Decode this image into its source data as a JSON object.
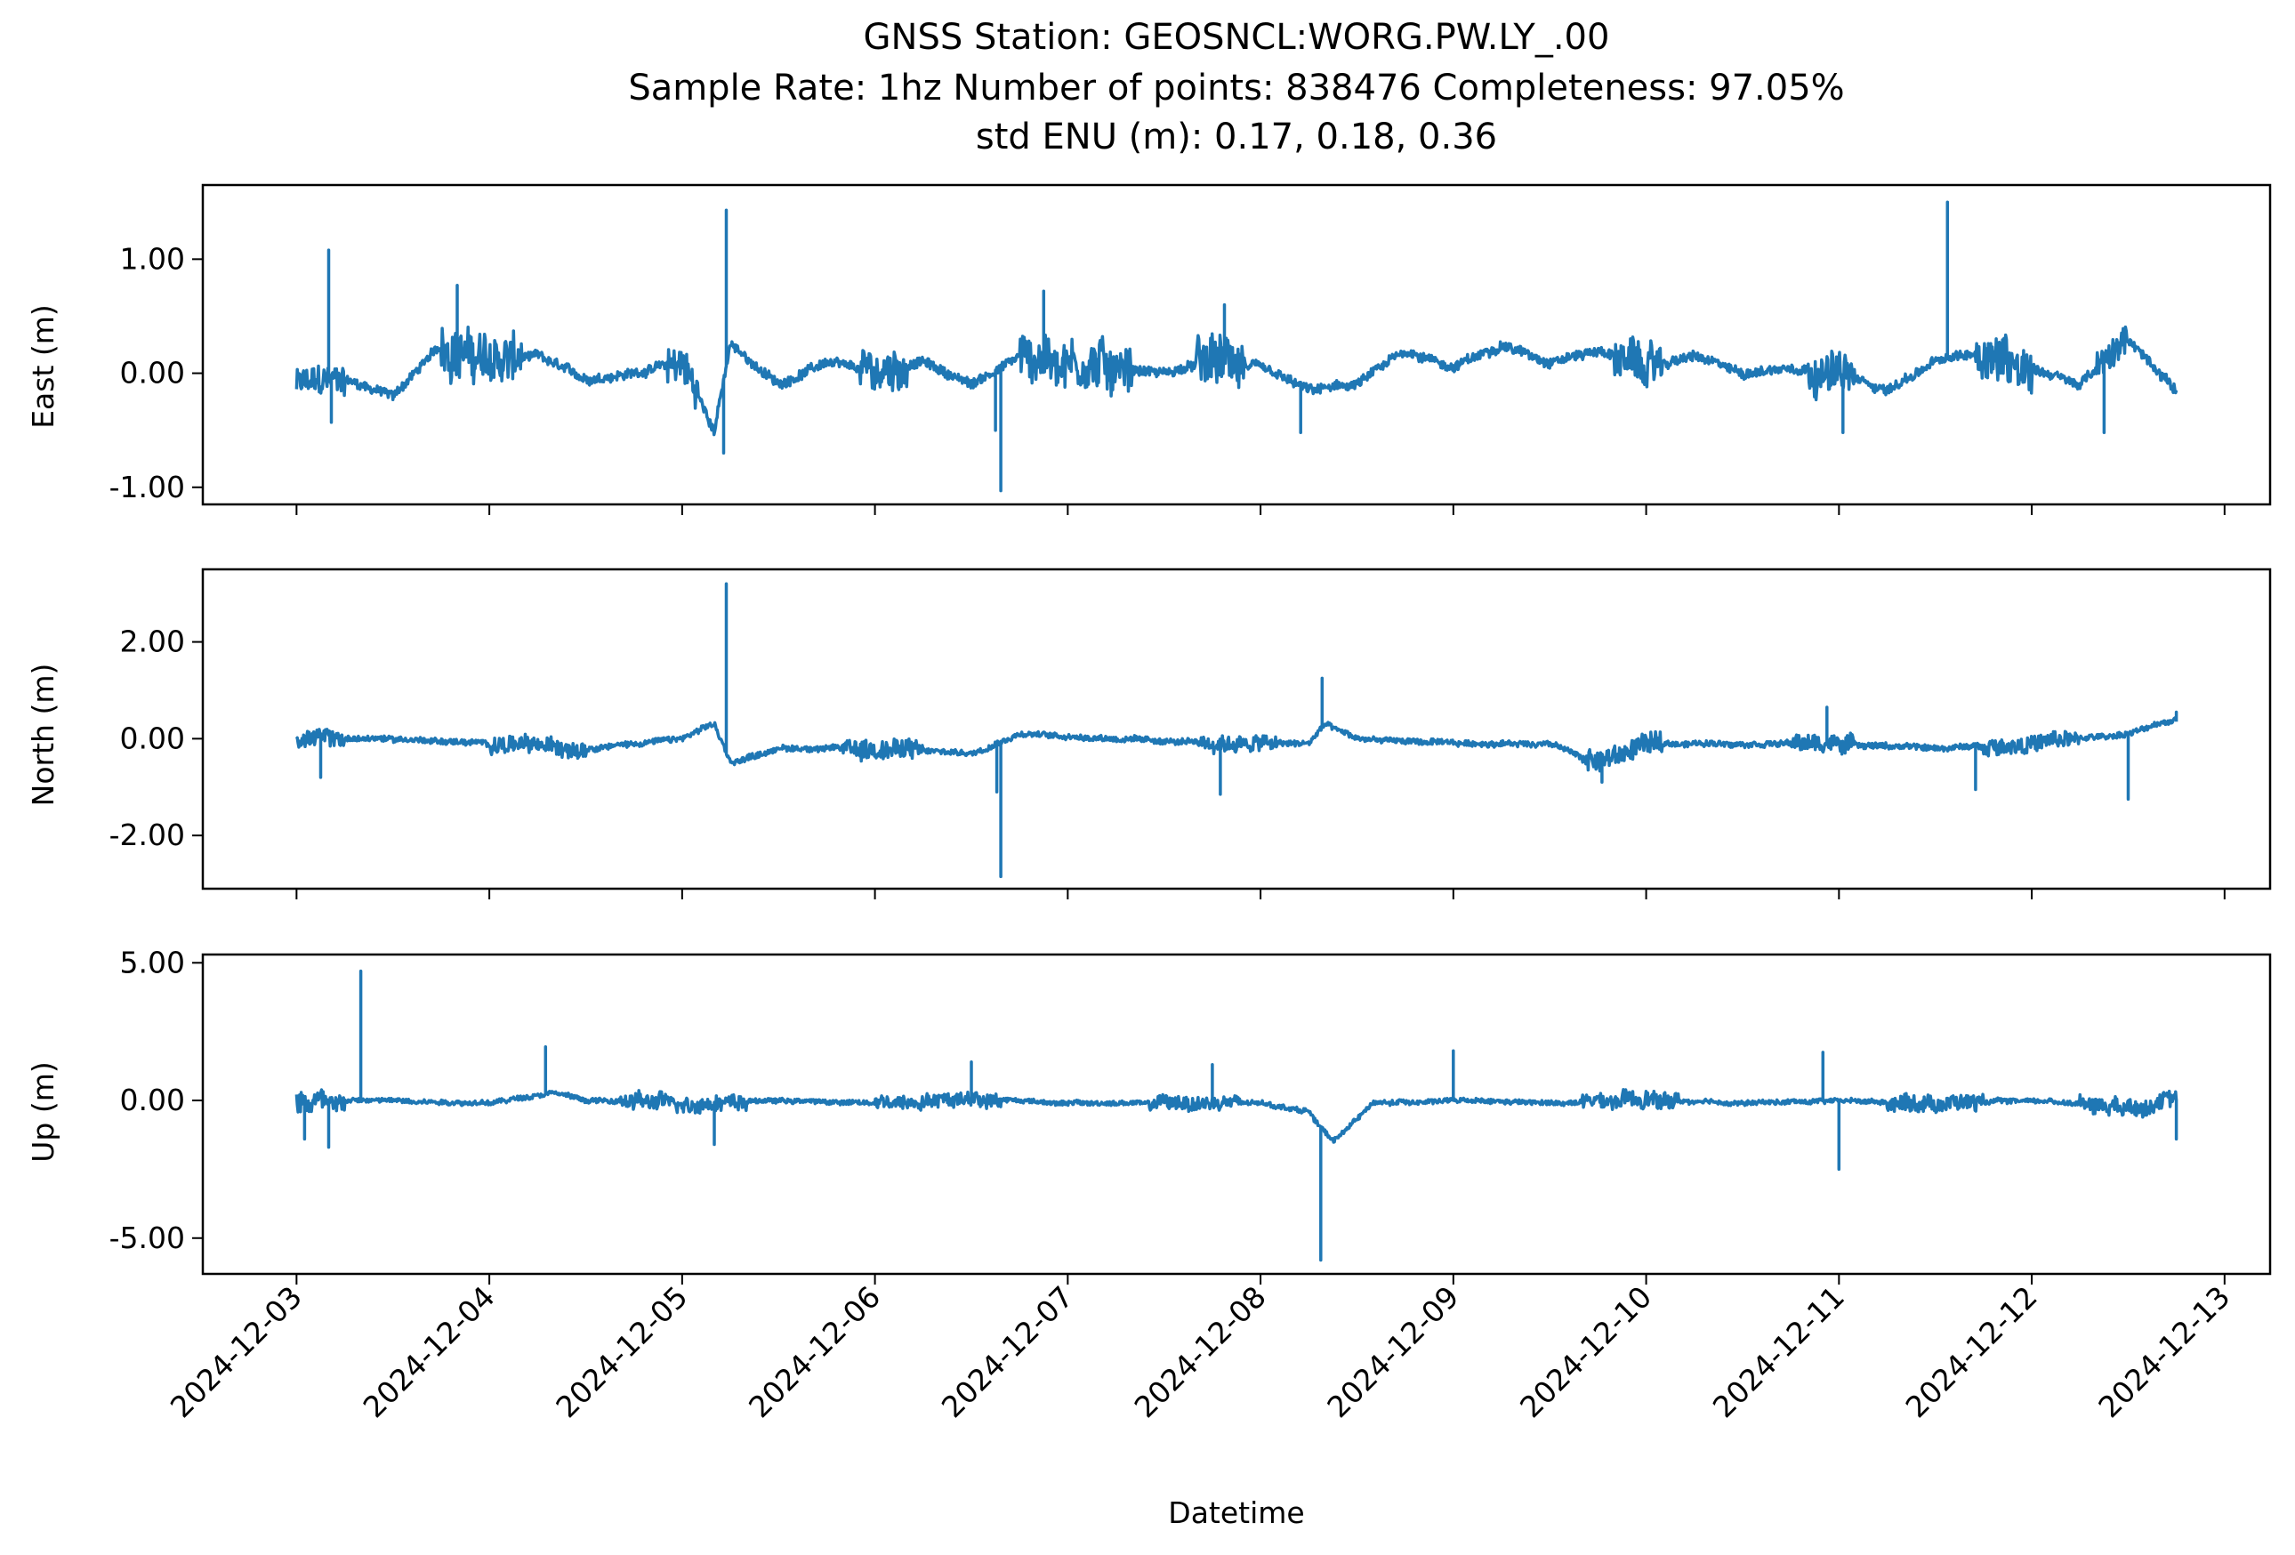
{
  "figure": {
    "title_lines": [
      "GNSS Station: GEOSNCL:WORG.PW.LY_.00",
      "Sample Rate: 1hz   Number of points: 838476    Completeness:  97.05%",
      "std ENU (m):  0.17, 0.18, 0.36"
    ],
    "xlabel": "Datetime",
    "line_color": "#1f77b4"
  },
  "chart_data": [
    {
      "type": "line",
      "ylabel": "East (m)",
      "ylim": [
        -1.15,
        1.65
      ],
      "yticks": [
        -1.0,
        0.0,
        1.0
      ],
      "ytick_labels": [
        "-1.00",
        "0.00",
        "1.00"
      ],
      "xlim": [
        "2024-12-02T12:20",
        "2024-12-13T05:40"
      ],
      "x_start": "2024-12-03T00:00",
      "x_end": "2024-12-12T18:00",
      "series": [
        {
          "profile": [
            [
              "2024-12-03T00:00",
              -0.1
            ],
            [
              "2024-12-03T06:00",
              -0.05
            ],
            [
              "2024-12-03T12:00",
              -0.2
            ],
            [
              "2024-12-03T18:00",
              0.25
            ],
            [
              "2024-12-04T00:00",
              0.1
            ],
            [
              "2024-12-04T06:00",
              0.15
            ],
            [
              "2024-12-04T12:00",
              -0.05
            ],
            [
              "2024-12-04T18:00",
              0.0
            ],
            [
              "2024-12-05T00:00",
              0.1
            ],
            [
              "2024-12-05T04:00",
              -0.5
            ],
            [
              "2024-12-05T06:00",
              0.25
            ],
            [
              "2024-12-05T12:00",
              -0.1
            ],
            [
              "2024-12-05T18:00",
              0.1
            ],
            [
              "2024-12-06T00:00",
              0.0
            ],
            [
              "2024-12-06T06:00",
              0.1
            ],
            [
              "2024-12-06T12:00",
              -0.1
            ],
            [
              "2024-12-06T18:00",
              0.15
            ],
            [
              "2024-12-07T00:00",
              0.1
            ],
            [
              "2024-12-07T06:00",
              0.05
            ],
            [
              "2024-12-07T12:00",
              0.0
            ],
            [
              "2024-12-07T18:00",
              0.1
            ],
            [
              "2024-12-08T00:00",
              0.05
            ],
            [
              "2024-12-08T06:00",
              -0.15
            ],
            [
              "2024-12-08T12:00",
              -0.1
            ],
            [
              "2024-12-08T18:00",
              0.2
            ],
            [
              "2024-12-09T00:00",
              0.05
            ],
            [
              "2024-12-09T06:00",
              0.25
            ],
            [
              "2024-12-09T12:00",
              0.1
            ],
            [
              "2024-12-09T18:00",
              0.2
            ],
            [
              "2024-12-10T00:00",
              0.05
            ],
            [
              "2024-12-10T06:00",
              0.15
            ],
            [
              "2024-12-10T12:00",
              0.0
            ],
            [
              "2024-12-10T18:00",
              0.05
            ],
            [
              "2024-12-11T00:00",
              0.0
            ],
            [
              "2024-12-11T06:00",
              -0.15
            ],
            [
              "2024-12-11T12:00",
              0.1
            ],
            [
              "2024-12-11T18:00",
              0.2
            ],
            [
              "2024-12-12T00:00",
              0.05
            ],
            [
              "2024-12-12T06:00",
              -0.1
            ],
            [
              "2024-12-12T12:00",
              0.3
            ],
            [
              "2024-12-12T18:00",
              -0.15
            ]
          ],
          "spikes": [
            [
              "2024-12-03T04:00",
              1.08
            ],
            [
              "2024-12-03T04:20",
              -0.43
            ],
            [
              "2024-12-03T20:00",
              0.77
            ],
            [
              "2024-12-05T05:30",
              1.43
            ],
            [
              "2024-12-05T05:10",
              -0.7
            ],
            [
              "2024-12-06T15:00",
              -0.5
            ],
            [
              "2024-12-06T15:40",
              -1.03
            ],
            [
              "2024-12-06T21:00",
              0.72
            ],
            [
              "2024-12-07T19:30",
              0.6
            ],
            [
              "2024-12-08T05:00",
              -0.52
            ],
            [
              "2024-12-11T13:30",
              1.5
            ],
            [
              "2024-12-11T00:30",
              -0.52
            ],
            [
              "2024-12-12T09:00",
              -0.52
            ]
          ],
          "noise_bands": [
            [
              "2024-12-03T00:00",
              "2024-12-03T06:00",
              0.15
            ],
            [
              "2024-12-03T18:00",
              "2024-12-04T04:00",
              0.25
            ],
            [
              "2024-12-04T22:00",
              "2024-12-05T02:00",
              0.2
            ],
            [
              "2024-12-05T22:00",
              "2024-12-06T04:00",
              0.2
            ],
            [
              "2024-12-06T18:00",
              "2024-12-07T08:00",
              0.25
            ],
            [
              "2024-12-07T16:00",
              "2024-12-07T22:00",
              0.25
            ],
            [
              "2024-12-09T20:00",
              "2024-12-10T02:00",
              0.2
            ],
            [
              "2024-12-10T20:00",
              "2024-12-11T02:00",
              0.2
            ],
            [
              "2024-12-11T17:00",
              "2024-12-12T00:00",
              0.25
            ],
            [
              "2024-12-12T08:00",
              "2024-12-12T12:00",
              0.15
            ]
          ],
          "base_noise": 0.05
        }
      ]
    },
    {
      "type": "line",
      "ylabel": "North (m)",
      "ylim": [
        -3.1,
        3.5
      ],
      "yticks": [
        -2.0,
        0.0,
        2.0
      ],
      "ytick_labels": [
        "-2.00",
        "0.00",
        "2.00"
      ],
      "xlim": [
        "2024-12-02T12:20",
        "2024-12-13T05:40"
      ],
      "x_start": "2024-12-03T00:00",
      "x_end": "2024-12-12T18:00",
      "series": [
        {
          "profile": [
            [
              "2024-12-03T00:00",
              0.0
            ],
            [
              "2024-12-03T12:00",
              0.0
            ],
            [
              "2024-12-04T00:00",
              -0.1
            ],
            [
              "2024-12-04T12:00",
              -0.2
            ],
            [
              "2024-12-05T00:00",
              0.0
            ],
            [
              "2024-12-05T04:00",
              0.3
            ],
            [
              "2024-12-05T06:00",
              -0.5
            ],
            [
              "2024-12-05T12:00",
              -0.2
            ],
            [
              "2024-12-06T00:00",
              -0.2
            ],
            [
              "2024-12-06T12:00",
              -0.3
            ],
            [
              "2024-12-06T18:00",
              0.1
            ],
            [
              "2024-12-07T06:00",
              0.0
            ],
            [
              "2024-12-07T18:00",
              -0.1
            ],
            [
              "2024-12-08T06:00",
              -0.1
            ],
            [
              "2024-12-08T08:00",
              0.3
            ],
            [
              "2024-12-08T12:00",
              0.0
            ],
            [
              "2024-12-09T00:00",
              -0.1
            ],
            [
              "2024-12-09T12:00",
              -0.1
            ],
            [
              "2024-12-09T18:00",
              -0.5
            ],
            [
              "2024-12-10T00:00",
              -0.1
            ],
            [
              "2024-12-10T12:00",
              -0.1
            ],
            [
              "2024-12-11T00:00",
              -0.1
            ],
            [
              "2024-12-11T12:00",
              -0.2
            ],
            [
              "2024-12-12T00:00",
              -0.1
            ],
            [
              "2024-12-12T12:00",
              0.1
            ],
            [
              "2024-12-12T18:00",
              0.4
            ]
          ],
          "spikes": [
            [
              "2024-12-05T05:30",
              3.2
            ],
            [
              "2024-12-06T15:40",
              -2.85
            ],
            [
              "2024-12-06T15:10",
              -1.1
            ],
            [
              "2024-12-07T19:00",
              -1.15
            ],
            [
              "2024-12-08T07:40",
              1.25
            ],
            [
              "2024-12-03T03:00",
              -0.8
            ],
            [
              "2024-12-09T18:30",
              -0.9
            ],
            [
              "2024-12-10T22:30",
              0.65
            ],
            [
              "2024-12-11T17:00",
              -1.05
            ],
            [
              "2024-12-12T12:00",
              -1.25
            ],
            [
              "2024-12-12T18:00",
              0.55
            ]
          ],
          "noise_bands": [
            [
              "2024-12-03T00:00",
              "2024-12-03T06:00",
              0.2
            ],
            [
              "2024-12-04T00:00",
              "2024-12-04T12:00",
              0.2
            ],
            [
              "2024-12-05T20:00",
              "2024-12-06T06:00",
              0.25
            ],
            [
              "2024-12-07T16:00",
              "2024-12-08T02:00",
              0.2
            ],
            [
              "2024-12-09T16:00",
              "2024-12-10T02:00",
              0.25
            ],
            [
              "2024-12-10T18:00",
              "2024-12-11T02:00",
              0.2
            ],
            [
              "2024-12-11T18:00",
              "2024-12-12T06:00",
              0.2
            ]
          ],
          "base_noise": 0.07
        }
      ]
    },
    {
      "type": "line",
      "ylabel": "Up (m)",
      "ylim": [
        -6.3,
        5.3
      ],
      "yticks": [
        -5.0,
        0.0,
        5.0
      ],
      "ytick_labels": [
        "-5.00",
        "0.00",
        "5.00"
      ],
      "xlim": [
        "2024-12-02T12:20",
        "2024-12-13T05:40"
      ],
      "x_start": "2024-12-03T00:00",
      "x_end": "2024-12-12T18:00",
      "series": [
        {
          "profile": [
            [
              "2024-12-03T00:00",
              0.0
            ],
            [
              "2024-12-03T12:00",
              0.0
            ],
            [
              "2024-12-04T00:00",
              -0.1
            ],
            [
              "2024-12-04T08:00",
              0.3
            ],
            [
              "2024-12-04T12:00",
              0.0
            ],
            [
              "2024-12-05T00:00",
              -0.1
            ],
            [
              "2024-12-05T12:00",
              0.0
            ],
            [
              "2024-12-06T00:00",
              -0.1
            ],
            [
              "2024-12-06T12:00",
              0.1
            ],
            [
              "2024-12-07T00:00",
              -0.1
            ],
            [
              "2024-12-07T12:00",
              -0.1
            ],
            [
              "2024-12-08T00:00",
              -0.1
            ],
            [
              "2024-12-08T06:00",
              -0.4
            ],
            [
              "2024-12-08T09:00",
              -1.5
            ],
            [
              "2024-12-08T14:00",
              -0.1
            ],
            [
              "2024-12-09T00:00",
              0.0
            ],
            [
              "2024-12-09T12:00",
              -0.1
            ],
            [
              "2024-12-10T00:00",
              0.0
            ],
            [
              "2024-12-10T12:00",
              -0.1
            ],
            [
              "2024-12-11T00:00",
              0.0
            ],
            [
              "2024-12-11T12:00",
              -0.1
            ],
            [
              "2024-12-12T00:00",
              0.0
            ],
            [
              "2024-12-12T12:00",
              -0.2
            ],
            [
              "2024-12-12T18:00",
              0.0
            ]
          ],
          "spikes": [
            [
              "2024-12-03T08:00",
              4.7
            ],
            [
              "2024-12-03T01:00",
              -1.4
            ],
            [
              "2024-12-03T04:00",
              -1.7
            ],
            [
              "2024-12-04T07:00",
              1.95
            ],
            [
              "2024-12-05T04:00",
              -1.6
            ],
            [
              "2024-12-06T12:00",
              1.4
            ],
            [
              "2024-12-07T18:00",
              1.3
            ],
            [
              "2024-12-08T07:30",
              -5.8
            ],
            [
              "2024-12-09T00:00",
              1.8
            ],
            [
              "2024-12-10T22:00",
              1.75
            ],
            [
              "2024-12-11T00:00",
              -2.5
            ],
            [
              "2024-12-12T18:00",
              -1.4
            ]
          ],
          "noise_bands": [
            [
              "2024-12-03T00:00",
              "2024-12-03T06:00",
              0.5
            ],
            [
              "2024-12-04T16:00",
              "2024-12-05T08:00",
              0.35
            ],
            [
              "2024-12-06T00:00",
              "2024-12-06T16:00",
              0.3
            ],
            [
              "2024-12-07T10:00",
              "2024-12-07T22:00",
              0.3
            ],
            [
              "2024-12-09T16:00",
              "2024-12-10T04:00",
              0.35
            ],
            [
              "2024-12-11T06:00",
              "2024-12-11T18:00",
              0.35
            ],
            [
              "2024-12-12T06:00",
              "2024-12-12T18:00",
              0.35
            ]
          ],
          "base_noise": 0.1
        }
      ]
    }
  ],
  "xaxis": {
    "ticks": [
      "2024-12-03",
      "2024-12-04",
      "2024-12-05",
      "2024-12-06",
      "2024-12-07",
      "2024-12-08",
      "2024-12-09",
      "2024-12-10",
      "2024-12-11",
      "2024-12-12",
      "2024-12-13"
    ]
  }
}
